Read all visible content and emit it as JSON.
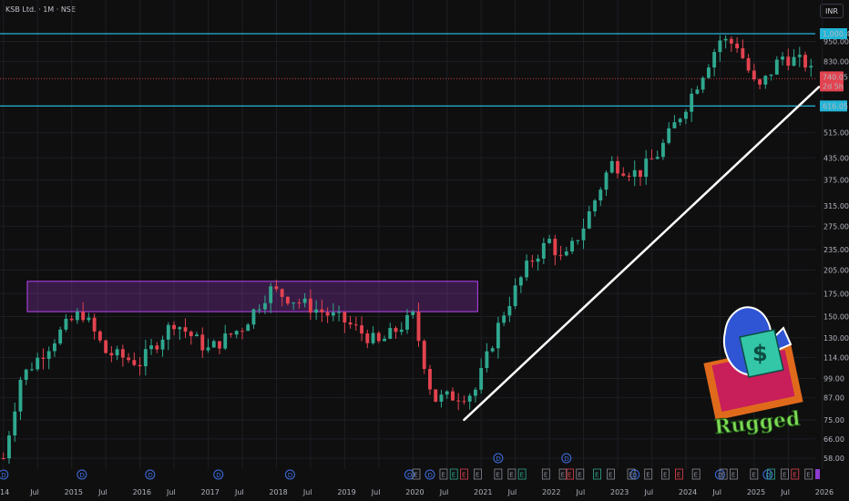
{
  "header": {
    "symbol": "KSB Ltd. · 1M · NSE",
    "currency": "INR"
  },
  "colors": {
    "up": "#2fa88f",
    "down": "#e3434f",
    "level": "#24b5d6",
    "zone": "#a13cd1",
    "trend": "#ffffff",
    "bg": "#0f0f10"
  },
  "chart_data": {
    "type": "candlestick",
    "interval": "1M",
    "y_scale": "log",
    "y_ticks": [
      58,
      66,
      75,
      87,
      99,
      114,
      130,
      150,
      175,
      205,
      235,
      275,
      315,
      375,
      435,
      515,
      616.05,
      830,
      950,
      1000.45
    ],
    "y_tick_labels": [
      "58.00",
      "66.00",
      "75.00",
      "87.00",
      "99.00",
      "114.00",
      "130.00",
      "150.00",
      "175.00",
      "205.00",
      "235.00",
      "275.00",
      "315.00",
      "375.00",
      "435.00",
      "515.00",
      "616.05",
      "830.00",
      "950.00",
      "1,000.45"
    ],
    "x_ticks": [
      {
        "label": "14",
        "t": 2014.0
      },
      {
        "label": "Jul",
        "t": 2014.5
      },
      {
        "label": "2015",
        "t": 2015.0
      },
      {
        "label": "Jul",
        "t": 2015.5
      },
      {
        "label": "2016",
        "t": 2016.0
      },
      {
        "label": "Jul",
        "t": 2016.5
      },
      {
        "label": "2017",
        "t": 2017.0
      },
      {
        "label": "Jul",
        "t": 2017.5
      },
      {
        "label": "2018",
        "t": 2018.0
      },
      {
        "label": "Jul",
        "t": 2018.5
      },
      {
        "label": "2019",
        "t": 2019.0
      },
      {
        "label": "Jul",
        "t": 2019.5
      },
      {
        "label": "2020",
        "t": 2020.0
      },
      {
        "label": "Jul",
        "t": 2020.5
      },
      {
        "label": "2021",
        "t": 2021.0
      },
      {
        "label": "Jul",
        "t": 2021.5
      },
      {
        "label": "2022",
        "t": 2022.0
      },
      {
        "label": "Jul",
        "t": 2022.5
      },
      {
        "label": "2023",
        "t": 2023.0
      },
      {
        "label": "Jul",
        "t": 2023.5
      },
      {
        "label": "2024",
        "t": 2024.0
      },
      {
        "label": "Jul",
        "t": 2024.5
      },
      {
        "label": "2025",
        "t": 2025.0
      },
      {
        "label": "Jul",
        "t": 2025.5
      },
      {
        "label": "2026",
        "t": 2026.0
      }
    ],
    "key_points": [
      {
        "t": 2014.0,
        "close": 58
      },
      {
        "t": 2014.25,
        "close": 99
      },
      {
        "t": 2014.9,
        "close": 140
      },
      {
        "t": 2015.15,
        "close": 155
      },
      {
        "t": 2015.5,
        "close": 118
      },
      {
        "t": 2016.0,
        "close": 110
      },
      {
        "t": 2016.5,
        "close": 145
      },
      {
        "t": 2017.0,
        "close": 120
      },
      {
        "t": 2017.5,
        "close": 140
      },
      {
        "t": 2017.9,
        "close": 180
      },
      {
        "t": 2018.5,
        "close": 160
      },
      {
        "t": 2019.0,
        "close": 145
      },
      {
        "t": 2019.5,
        "close": 125
      },
      {
        "t": 2020.0,
        "close": 150
      },
      {
        "t": 2020.3,
        "close": 86
      },
      {
        "t": 2020.9,
        "close": 90
      },
      {
        "t": 2021.3,
        "close": 150
      },
      {
        "t": 2021.7,
        "close": 215
      },
      {
        "t": 2022.0,
        "close": 250
      },
      {
        "t": 2022.2,
        "close": 215
      },
      {
        "t": 2022.5,
        "close": 275
      },
      {
        "t": 2022.9,
        "close": 420
      },
      {
        "t": 2023.3,
        "close": 390
      },
      {
        "t": 2023.6,
        "close": 450
      },
      {
        "t": 2024.0,
        "close": 620
      },
      {
        "t": 2024.5,
        "close": 960
      },
      {
        "t": 2024.75,
        "close": 930
      },
      {
        "t": 2025.05,
        "close": 680
      },
      {
        "t": 2025.4,
        "close": 860
      },
      {
        "t": 2025.75,
        "close": 820
      },
      {
        "t": 2025.9,
        "close": 740.05
      }
    ],
    "levels": [
      {
        "name": "resistance",
        "value": 1000.45
      },
      {
        "name": "support",
        "value": 616.05
      }
    ],
    "last_price": {
      "value": "740.05",
      "countdown": "2d 5h"
    },
    "zone": {
      "t_start": 2014.35,
      "t_end": 2020.95,
      "y_low": 155,
      "y_high": 190
    },
    "trendline": {
      "t_start": 2020.75,
      "p_start": 75,
      "t_end": 2025.95,
      "p_end": 700
    },
    "events": {
      "dividend_label": "D",
      "earnings_label": "E",
      "dividends_t": [
        2014.0,
        2015.15,
        2016.15,
        2017.15,
        2018.2,
        2019.95,
        2020.25,
        2021.25,
        2022.25,
        2023.25,
        2024.5,
        2025.2
      ],
      "dividends_raised_t": [
        2021.25,
        2022.25
      ],
      "earnings_t": [
        2020.05,
        2020.45,
        2020.6,
        2020.75,
        2020.95,
        2021.25,
        2021.45,
        2021.6,
        2021.95,
        2022.2,
        2022.3,
        2022.45,
        2022.7,
        2022.9,
        2023.2,
        2023.45,
        2023.7,
        2023.9,
        2024.15,
        2024.55,
        2024.7,
        2025.0,
        2025.25,
        2025.45,
        2025.6,
        2025.8
      ]
    }
  },
  "watermark": {
    "text": "Rugged"
  }
}
